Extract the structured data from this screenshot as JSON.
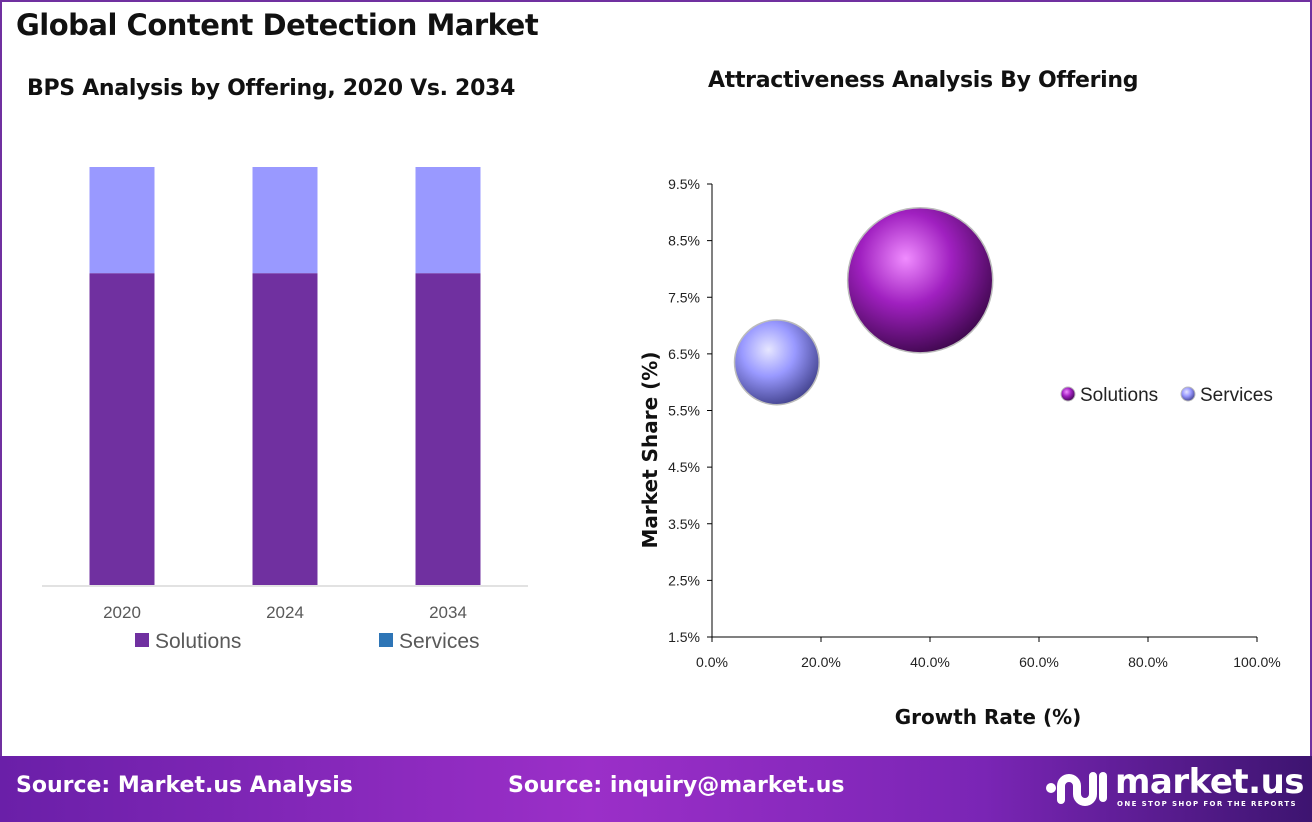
{
  "title": "Global Content Detection Market",
  "footer": {
    "source_left": "Source: Market.us Analysis",
    "source_right": "Source: inquiry@market.us",
    "logo_text": "market.us",
    "logo_tagline": "ONE STOP SHOP FOR THE REPORTS"
  },
  "chart_data": [
    {
      "type": "bar",
      "stacked": true,
      "title": "BPS Analysis by Offering, 2020 Vs. 2034",
      "categories": [
        "2020",
        "2024",
        "2034"
      ],
      "series": [
        {
          "name": "Solutions",
          "values": [
            74.6,
            74.6,
            74.6
          ],
          "color": "#7030a0",
          "legend_color": "#7030a0"
        },
        {
          "name": "Services",
          "values": [
            25.4,
            25.4,
            25.4
          ],
          "color": "#9999ff",
          "legend_color": "#2e75b6"
        }
      ],
      "ylim": [
        0,
        100
      ],
      "grid": false,
      "legend": "bottom"
    },
    {
      "type": "scatter",
      "subtype": "bubble",
      "title": "Attractiveness Analysis By Offering",
      "xlabel": "Growth Rate (%)",
      "ylabel": "Market Share (%)",
      "xlim": [
        0,
        100
      ],
      "ylim": [
        1.5,
        9.5
      ],
      "xticks": [
        "0.0%",
        "20.0%",
        "40.0%",
        "60.0%",
        "80.0%",
        "100.0%"
      ],
      "yticks": [
        "1.5%",
        "2.5%",
        "3.5%",
        "4.5%",
        "5.5%",
        "6.5%",
        "7.5%",
        "8.5%",
        "9.5%"
      ],
      "series": [
        {
          "name": "Solutions",
          "x": 38.2,
          "y": 7.8,
          "size": 74.6,
          "color": "#a020c0"
        },
        {
          "name": "Services",
          "x": 11.9,
          "y": 6.35,
          "size": 25.4,
          "color": "#9999ff"
        }
      ],
      "grid": false,
      "legend": "right"
    }
  ]
}
